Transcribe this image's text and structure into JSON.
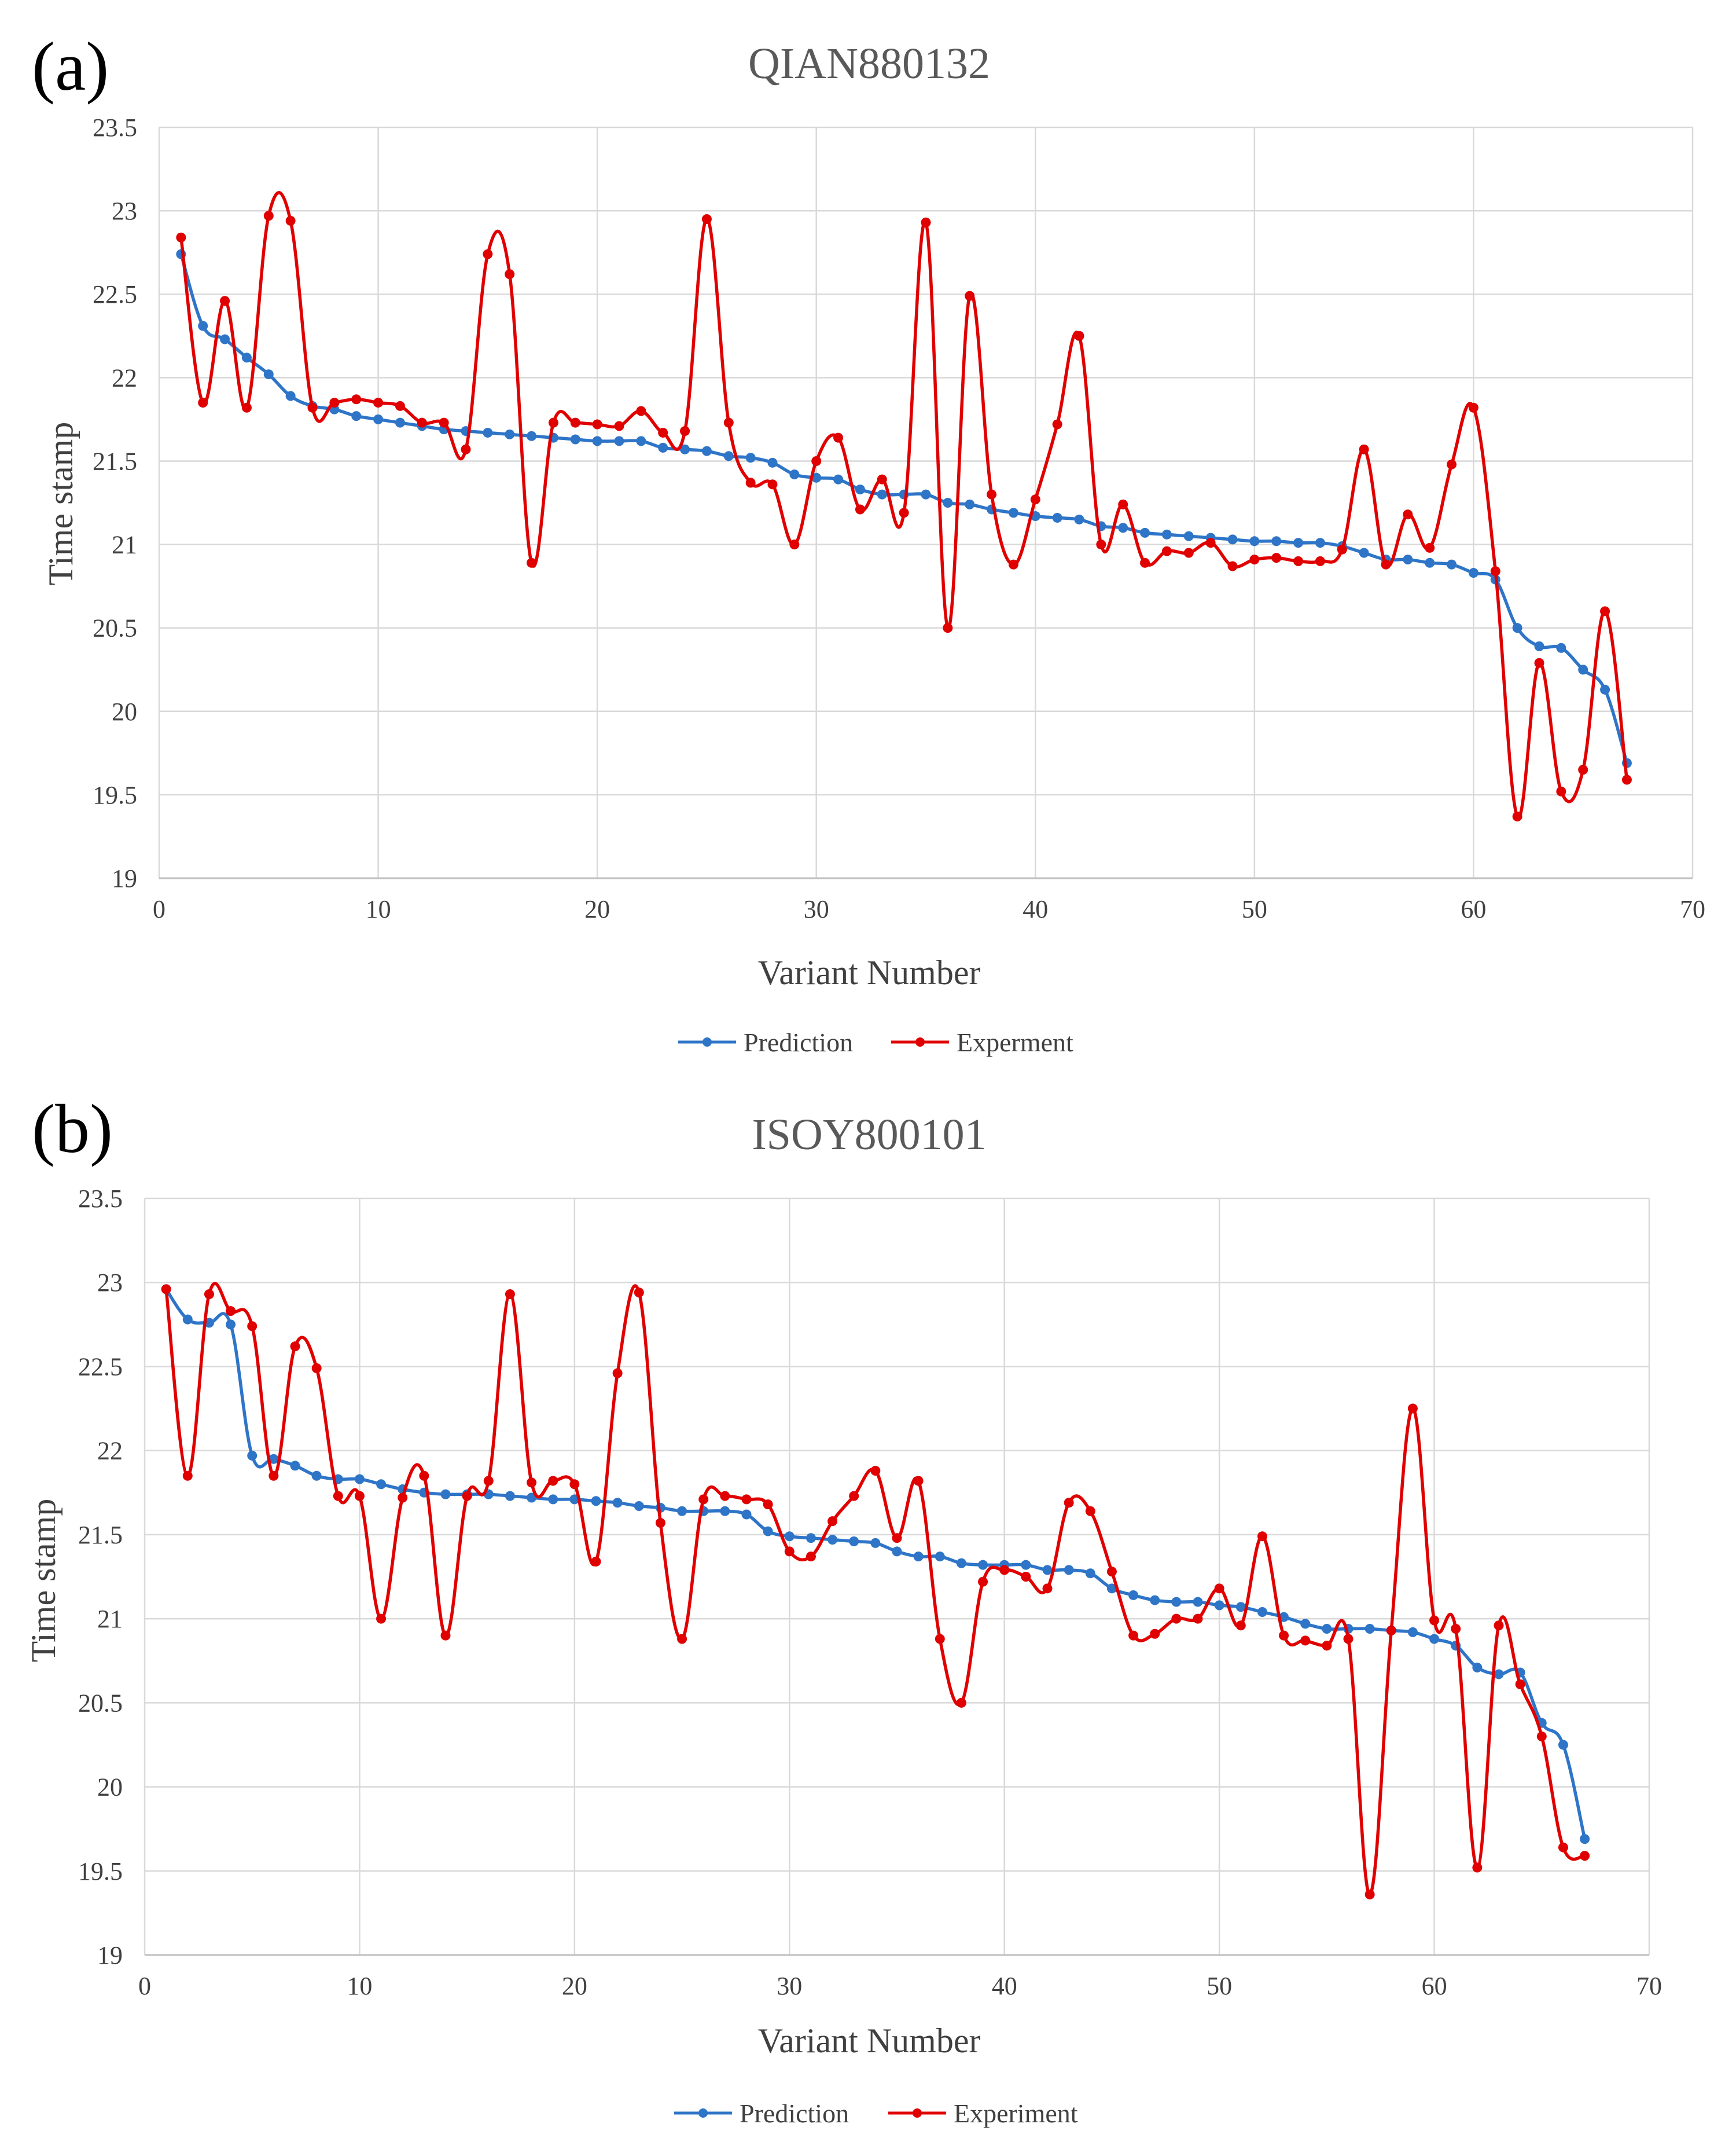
{
  "colors": {
    "prediction": "#2E75C8",
    "experiment": "#E00000",
    "grid": "#D9D9D9",
    "axis": "#BFBFBF"
  },
  "chart_data": [
    {
      "type": "line",
      "panel_label": "(a)",
      "title": "QIAN880132",
      "xlabel": "Variant Number",
      "ylabel": "Time stamp",
      "xlim": [
        0,
        70
      ],
      "ylim": [
        19,
        23.5
      ],
      "x_ticks": [
        "0",
        "10",
        "20",
        "30",
        "40",
        "50",
        "60",
        "70"
      ],
      "y_ticks": [
        "19",
        "19.5",
        "20",
        "20.5",
        "21",
        "21.5",
        "22",
        "22.5",
        "23",
        "23.5"
      ],
      "grid": true,
      "legend_position": "bottom-center",
      "series": [
        {
          "name": "Prediction",
          "color": "#2E75C8",
          "x": [
            1,
            2,
            3,
            4,
            5,
            6,
            7,
            8,
            9,
            10,
            11,
            12,
            13,
            14,
            15,
            16,
            17,
            18,
            19,
            20,
            21,
            22,
            23,
            24,
            25,
            26,
            27,
            28,
            29,
            30,
            31,
            32,
            33,
            34,
            35,
            36,
            37,
            38,
            39,
            40,
            41,
            42,
            43,
            44,
            45,
            46,
            47,
            48,
            49,
            50,
            51,
            52,
            53,
            54,
            55,
            56,
            57,
            58,
            59,
            60,
            61,
            62,
            63,
            64,
            65,
            66,
            67
          ],
          "values": [
            22.74,
            22.31,
            22.23,
            22.12,
            22.02,
            21.89,
            21.83,
            21.81,
            21.77,
            21.75,
            21.73,
            21.71,
            21.69,
            21.68,
            21.67,
            21.66,
            21.65,
            21.64,
            21.63,
            21.62,
            21.62,
            21.62,
            21.58,
            21.57,
            21.56,
            21.53,
            21.52,
            21.49,
            21.42,
            21.4,
            21.39,
            21.33,
            21.3,
            21.3,
            21.3,
            21.25,
            21.24,
            21.21,
            21.19,
            21.17,
            21.16,
            21.15,
            21.11,
            21.1,
            21.07,
            21.06,
            21.05,
            21.04,
            21.03,
            21.02,
            21.02,
            21.01,
            21.01,
            20.99,
            20.95,
            20.91,
            20.91,
            20.89,
            20.88,
            20.83,
            20.79,
            20.5,
            20.39,
            20.38,
            20.25,
            20.13,
            19.69
          ]
        },
        {
          "name": "Experment",
          "color": "#E00000",
          "x": [
            1,
            2,
            3,
            4,
            5,
            6,
            7,
            8,
            9,
            10,
            11,
            12,
            13,
            14,
            15,
            16,
            17,
            18,
            19,
            20,
            21,
            22,
            23,
            24,
            25,
            26,
            27,
            28,
            29,
            30,
            31,
            32,
            33,
            34,
            35,
            36,
            37,
            38,
            39,
            40,
            41,
            42,
            43,
            44,
            45,
            46,
            47,
            48,
            49,
            50,
            51,
            52,
            53,
            54,
            55,
            56,
            57,
            58,
            59,
            60,
            61,
            62,
            63,
            64,
            65,
            66,
            67
          ],
          "values": [
            22.84,
            21.85,
            22.46,
            21.82,
            22.97,
            22.94,
            21.82,
            21.85,
            21.87,
            21.85,
            21.83,
            21.73,
            21.73,
            21.57,
            22.74,
            22.62,
            20.89,
            21.73,
            21.73,
            21.72,
            21.71,
            21.8,
            21.67,
            21.68,
            22.95,
            21.73,
            21.37,
            21.36,
            21.0,
            21.5,
            21.64,
            21.21,
            21.39,
            21.19,
            22.93,
            20.5,
            22.49,
            21.3,
            20.88,
            21.27,
            21.72,
            22.25,
            21.0,
            21.24,
            20.89,
            20.96,
            20.95,
            21.01,
            20.87,
            20.91,
            20.92,
            20.9,
            20.9,
            20.97,
            21.57,
            20.88,
            21.18,
            20.98,
            21.48,
            21.82,
            20.84,
            19.37,
            20.29,
            19.52,
            19.65,
            20.6,
            19.59
          ]
        }
      ]
    },
    {
      "type": "line",
      "panel_label": "(b)",
      "title": "ISOY800101",
      "xlabel": "Variant Number",
      "ylabel": "Time stamp",
      "xlim": [
        0,
        70
      ],
      "ylim": [
        19,
        23.5
      ],
      "x_ticks": [
        "0",
        "10",
        "20",
        "30",
        "40",
        "50",
        "60",
        "70"
      ],
      "y_ticks": [
        "19",
        "19.5",
        "20",
        "20.5",
        "21",
        "21.5",
        "22",
        "22.5",
        "23",
        "23.5"
      ],
      "grid": true,
      "legend_position": "bottom-center",
      "series": [
        {
          "name": "Prediction",
          "color": "#2E75C8",
          "x": [
            1,
            2,
            3,
            4,
            5,
            6,
            7,
            8,
            9,
            10,
            11,
            12,
            13,
            14,
            15,
            16,
            17,
            18,
            19,
            20,
            21,
            22,
            23,
            24,
            25,
            26,
            27,
            28,
            29,
            30,
            31,
            32,
            33,
            34,
            35,
            36,
            37,
            38,
            39,
            40,
            41,
            42,
            43,
            44,
            45,
            46,
            47,
            48,
            49,
            50,
            51,
            52,
            53,
            54,
            55,
            56,
            57,
            58,
            59,
            60,
            61,
            62,
            63,
            64,
            65,
            66,
            67
          ],
          "values": [
            22.96,
            22.78,
            22.76,
            22.75,
            21.97,
            21.95,
            21.91,
            21.85,
            21.83,
            21.83,
            21.8,
            21.77,
            21.75,
            21.74,
            21.74,
            21.74,
            21.73,
            21.72,
            21.71,
            21.71,
            21.7,
            21.69,
            21.67,
            21.66,
            21.64,
            21.64,
            21.64,
            21.62,
            21.52,
            21.49,
            21.48,
            21.47,
            21.46,
            21.45,
            21.4,
            21.37,
            21.37,
            21.33,
            21.32,
            21.32,
            21.32,
            21.29,
            21.29,
            21.27,
            21.18,
            21.14,
            21.11,
            21.1,
            21.1,
            21.08,
            21.07,
            21.04,
            21.01,
            20.97,
            20.94,
            20.94,
            20.94,
            20.93,
            20.92,
            20.88,
            20.84,
            20.71,
            20.67,
            20.68,
            20.38,
            20.25,
            19.69
          ]
        },
        {
          "name": "Experiment",
          "color": "#E00000",
          "x": [
            1,
            2,
            3,
            4,
            5,
            6,
            7,
            8,
            9,
            10,
            11,
            12,
            13,
            14,
            15,
            16,
            17,
            18,
            19,
            20,
            21,
            22,
            23,
            24,
            25,
            26,
            27,
            28,
            29,
            30,
            31,
            32,
            33,
            34,
            35,
            36,
            37,
            38,
            39,
            40,
            41,
            42,
            43,
            44,
            45,
            46,
            47,
            48,
            49,
            50,
            51,
            52,
            53,
            54,
            55,
            56,
            57,
            58,
            59,
            60,
            61,
            62,
            63,
            64,
            65,
            66,
            67
          ],
          "values": [
            22.96,
            21.85,
            22.93,
            22.83,
            22.74,
            21.85,
            22.62,
            22.49,
            21.73,
            21.73,
            21.0,
            21.72,
            21.85,
            20.9,
            21.73,
            21.82,
            22.93,
            21.81,
            21.82,
            21.8,
            21.34,
            22.46,
            22.94,
            21.57,
            20.88,
            21.71,
            21.73,
            21.71,
            21.68,
            21.4,
            21.37,
            21.58,
            21.73,
            21.88,
            21.48,
            21.82,
            20.88,
            20.5,
            21.22,
            21.29,
            21.25,
            21.18,
            21.69,
            21.64,
            21.28,
            20.9,
            20.91,
            21.0,
            21.0,
            21.18,
            20.96,
            21.49,
            20.9,
            20.87,
            20.84,
            20.88,
            19.36,
            20.93,
            22.25,
            20.99,
            20.94,
            19.52,
            20.96,
            20.61,
            20.3,
            19.64,
            19.59
          ]
        }
      ]
    }
  ]
}
